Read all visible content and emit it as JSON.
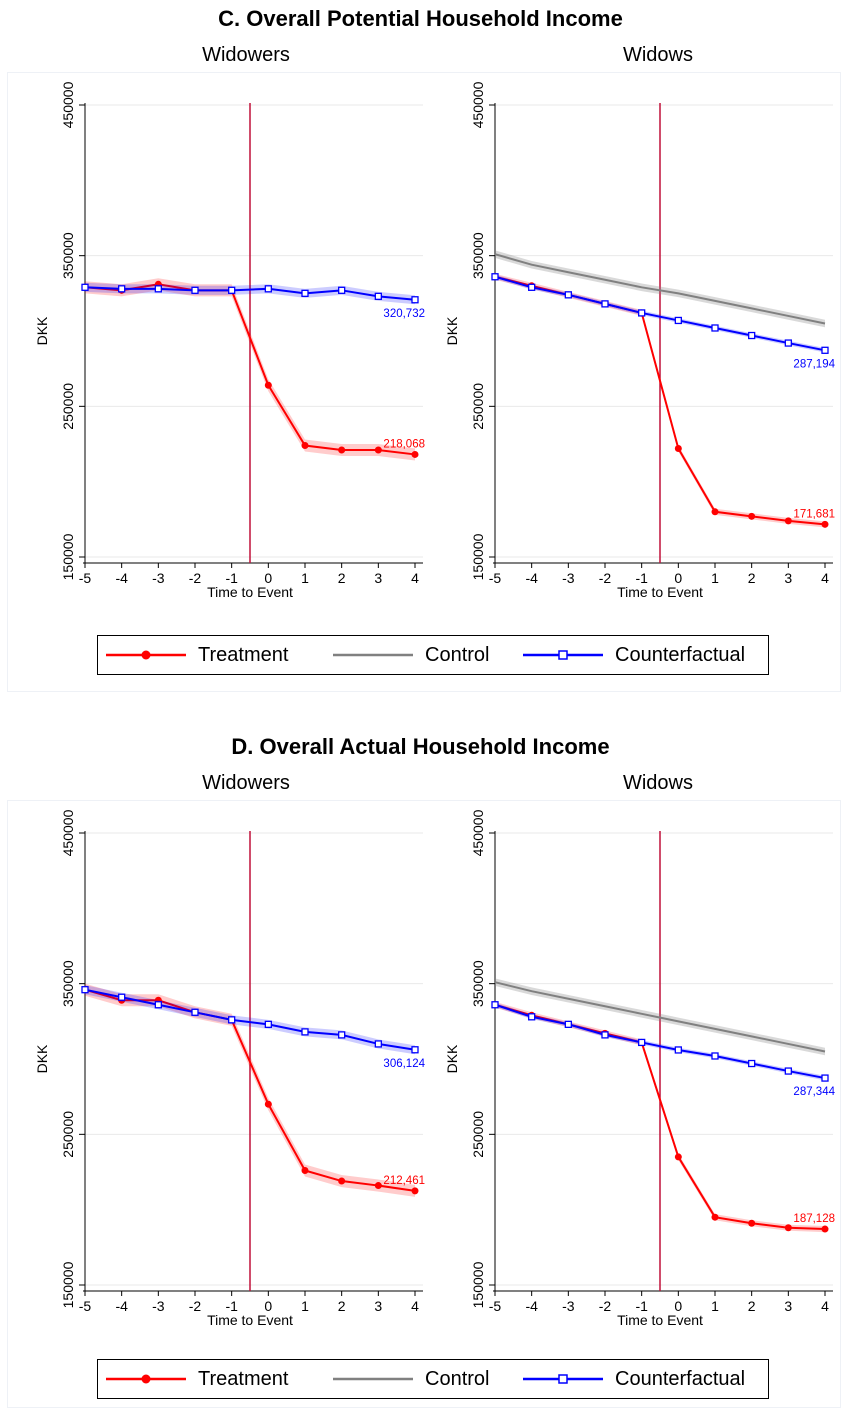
{
  "colors": {
    "treatment": "#ff0000",
    "control": "#808080",
    "counterfactual": "#0000ff",
    "event_line": "#c0103a",
    "grid": "#eaeaea"
  },
  "legend": {
    "treatment": "Treatment",
    "control": "Control",
    "counterfactual": "Counterfactual"
  },
  "panels": [
    {
      "title": "C. Overall Potential Household Income",
      "left_title": "Widowers",
      "right_title": "Widows"
    },
    {
      "title": "D. Overall Actual Household Income",
      "left_title": "Widowers",
      "right_title": "Widows"
    }
  ],
  "chart_data": [
    {
      "type": "line",
      "title": "Widowers",
      "xlabel": "Time to Event",
      "ylabel": "DKK",
      "x": [
        -5,
        -4,
        -3,
        -2,
        -1,
        0,
        1,
        2,
        3,
        4
      ],
      "xlim": [
        -5,
        4
      ],
      "ylim": [
        150000,
        450000
      ],
      "yticks": [
        150000,
        250000,
        350000,
        450000
      ],
      "event_line": -0.5,
      "grid": true,
      "series": [
        {
          "name": "Treatment",
          "values": [
            329000,
            327000,
            331000,
            327000,
            327000,
            264000,
            224000,
            221000,
            221000,
            218068
          ],
          "band": 4000,
          "end_label": "218,068"
        },
        {
          "name": "Counterfactual",
          "values": [
            329000,
            328000,
            328000,
            327000,
            327000,
            328000,
            325000,
            327000,
            323000,
            320732
          ],
          "band": 3000,
          "end_label": "320,732"
        }
      ]
    },
    {
      "type": "line",
      "title": "Widows",
      "xlabel": "Time to Event",
      "ylabel": "DKK",
      "x": [
        -5,
        -4,
        -3,
        -2,
        -1,
        0,
        1,
        2,
        3,
        4
      ],
      "xlim": [
        -5,
        4
      ],
      "ylim": [
        150000,
        450000
      ],
      "yticks": [
        150000,
        250000,
        350000,
        450000
      ],
      "event_line": -0.5,
      "grid": true,
      "series": [
        {
          "name": "Control",
          "values": [
            351000,
            344000,
            339000,
            334000,
            329000,
            325000,
            320000,
            315000,
            310000,
            305000
          ],
          "band": 2500
        },
        {
          "name": "Treatment",
          "values": [
            336000,
            330000,
            324000,
            318000,
            312000,
            222000,
            180000,
            177000,
            174000,
            171681
          ],
          "band": 2000,
          "end_label": "171,681"
        },
        {
          "name": "Counterfactual",
          "values": [
            336000,
            329000,
            324000,
            318000,
            312000,
            307000,
            302000,
            297000,
            292000,
            287194
          ],
          "band": 1500,
          "end_label": "287,194"
        }
      ]
    },
    {
      "type": "line",
      "title": "Widowers",
      "xlabel": "Time to Event",
      "ylabel": "DKK",
      "x": [
        -5,
        -4,
        -3,
        -2,
        -1,
        0,
        1,
        2,
        3,
        4
      ],
      "xlim": [
        -5,
        4
      ],
      "ylim": [
        150000,
        450000
      ],
      "yticks": [
        150000,
        250000,
        350000,
        450000
      ],
      "event_line": -0.5,
      "grid": true,
      "series": [
        {
          "name": "Treatment",
          "values": [
            346000,
            339000,
            339000,
            331000,
            326000,
            270000,
            226000,
            219000,
            216000,
            212461
          ],
          "band": 4000,
          "end_label": "212,461"
        },
        {
          "name": "Counterfactual",
          "values": [
            346000,
            341000,
            336000,
            331000,
            326000,
            323000,
            318000,
            316000,
            310000,
            306124
          ],
          "band": 3000,
          "end_label": "306,124"
        }
      ]
    },
    {
      "type": "line",
      "title": "Widows",
      "xlabel": "Time to Event",
      "ylabel": "DKK",
      "x": [
        -5,
        -4,
        -3,
        -2,
        -1,
        0,
        1,
        2,
        3,
        4
      ],
      "xlim": [
        -5,
        4
      ],
      "ylim": [
        150000,
        450000
      ],
      "yticks": [
        150000,
        250000,
        350000,
        450000
      ],
      "event_line": -0.5,
      "grid": true,
      "series": [
        {
          "name": "Control",
          "values": [
            351000,
            345000,
            340000,
            335000,
            330000,
            325000,
            320000,
            315000,
            310000,
            305000
          ],
          "band": 2500
        },
        {
          "name": "Treatment",
          "values": [
            336000,
            329000,
            323000,
            317000,
            311000,
            235000,
            195000,
            191000,
            188000,
            187128
          ],
          "band": 2000,
          "end_label": "187,128"
        },
        {
          "name": "Counterfactual",
          "values": [
            336000,
            328000,
            323000,
            316000,
            311000,
            306000,
            302000,
            297000,
            292000,
            287344
          ],
          "band": 1500,
          "end_label": "287,344"
        }
      ]
    }
  ]
}
